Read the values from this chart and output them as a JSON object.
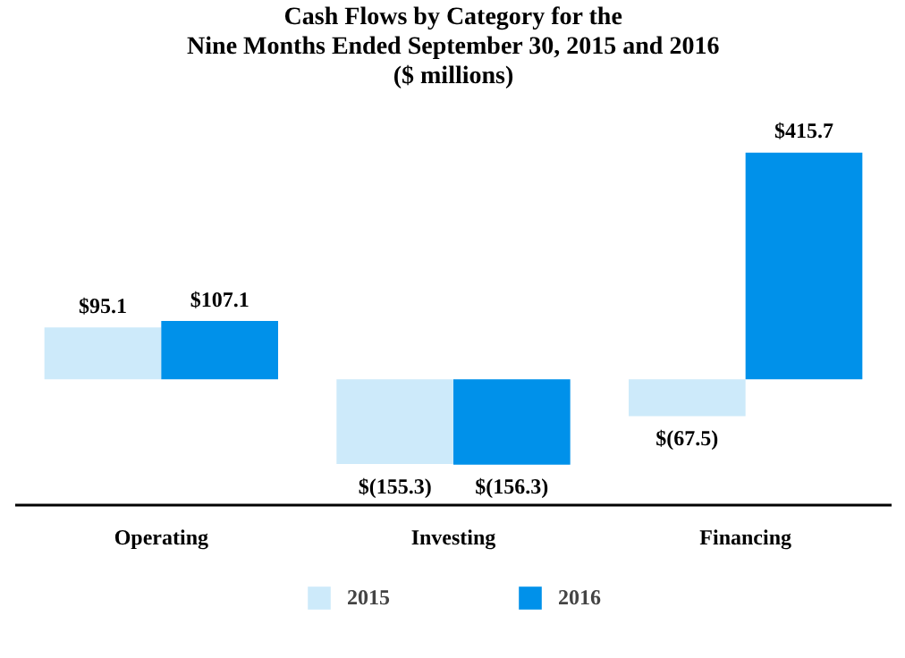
{
  "chart_data": {
    "type": "bar",
    "title": "Cash Flows by Category for the\nNine Months Ended September 30, 2015 and 2016\n($ millions)",
    "categories": [
      "Operating",
      "Investing",
      "Financing"
    ],
    "series": [
      {
        "name": "2015",
        "color": "#cdeafa",
        "values": [
          95.1,
          -155.3,
          -67.5
        ],
        "value_labels": [
          "$95.1",
          "$(155.3)",
          "$(67.5)"
        ]
      },
      {
        "name": "2016",
        "color": "#0091ea",
        "values": [
          107.1,
          -156.3,
          415.7
        ],
        "value_labels": [
          "$107.1",
          "$(156.3)",
          "$415.7"
        ]
      }
    ],
    "legend": "bottom"
  }
}
